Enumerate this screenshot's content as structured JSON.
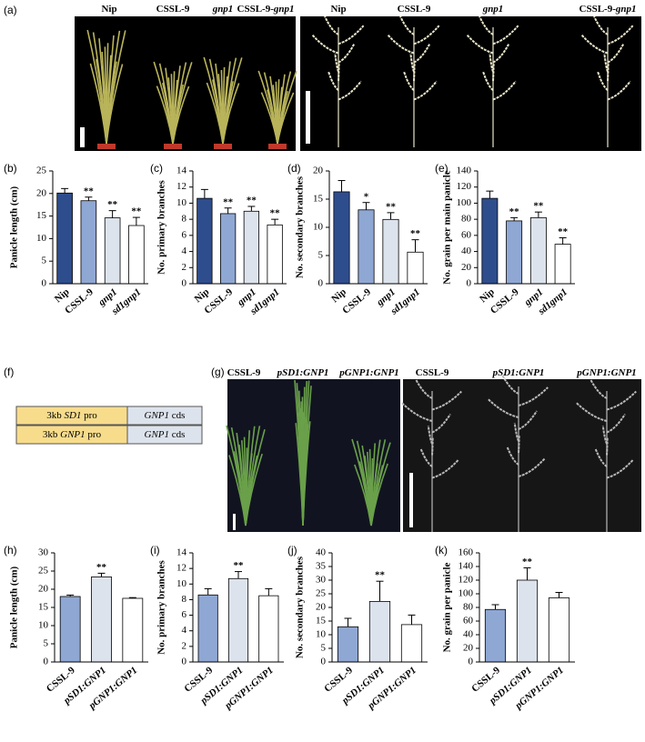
{
  "figure_labels": [
    "(a)",
    "(b)",
    "(c)",
    "(d)",
    "(e)",
    "(f)",
    "(g)",
    "(h)",
    "(i)",
    "(j)",
    "(k)"
  ],
  "photo_a_left": [
    [
      {
        "text": "Nip",
        "italic": false
      }
    ],
    [
      {
        "text": "CSSL-9",
        "italic": false
      }
    ],
    [
      {
        "text": "gnp1",
        "italic": true
      }
    ],
    [
      {
        "text": "CSSL-9-",
        "italic": false
      },
      {
        "text": "gnp1",
        "italic": true
      }
    ]
  ],
  "photo_a_right": [
    [
      {
        "text": "Nip",
        "italic": false
      }
    ],
    [
      {
        "text": "CSSL-9",
        "italic": false
      }
    ],
    [
      {
        "text": "gnp1",
        "italic": true
      }
    ],
    [
      {
        "text": "CSSL-9-",
        "italic": false
      },
      {
        "text": "gnp1",
        "italic": true
      }
    ]
  ],
  "photo_g_left": [
    [
      {
        "text": "CSSL-9",
        "italic": false
      }
    ],
    [
      {
        "text": "pSD1:GNP1",
        "italic": true
      }
    ],
    [
      {
        "text": "pGNP1:GNP1",
        "italic": true
      }
    ]
  ],
  "photo_g_right": [
    [
      {
        "text": "CSSL-9",
        "italic": false
      }
    ],
    [
      {
        "text": "pSD1:GNP1",
        "italic": true
      }
    ],
    [
      {
        "text": "pGNP1:GNP1",
        "italic": true
      }
    ]
  ],
  "constructs": [
    {
      "promoter": [
        {
          "text": "3kb ",
          "italic": false
        },
        {
          "text": "SD1",
          "italic": true
        },
        {
          "text": " pro",
          "italic": false
        }
      ],
      "cds": [
        {
          "text": "GNP1",
          "italic": true
        },
        {
          "text": " cds",
          "italic": false
        }
      ]
    },
    {
      "promoter": [
        {
          "text": "3kb ",
          "italic": false
        },
        {
          "text": "GNP1",
          "italic": true
        },
        {
          "text": " pro",
          "italic": false
        }
      ],
      "cds": [
        {
          "text": "GNP1",
          "italic": true
        },
        {
          "text": " cds",
          "italic": false
        }
      ]
    }
  ],
  "chart_data": [
    {
      "type": "bar",
      "y_label": "Panicle length (cm)",
      "categories": [
        "Nip",
        "CSSL-9",
        "gnp1",
        "sd1gnp1"
      ],
      "category_italic": [
        false,
        false,
        true,
        true
      ],
      "values": [
        20.1,
        18.4,
        14.6,
        12.9
      ],
      "errors": [
        1.0,
        0.8,
        1.6,
        1.8
      ],
      "annotations": [
        null,
        "**",
        "**",
        "**"
      ],
      "colors": [
        "#2e4d8c",
        "#8fa7d3",
        "#dde3ec",
        "#ffffff"
      ],
      "ylim": [
        0,
        25
      ],
      "yticks": [
        0,
        5,
        10,
        15,
        20,
        25
      ]
    },
    {
      "type": "bar",
      "y_label": "No. primary branches",
      "categories": [
        "Nip",
        "CSSL-9",
        "gnp1",
        "sd1gnp1"
      ],
      "category_italic": [
        false,
        false,
        true,
        true
      ],
      "values": [
        10.6,
        8.7,
        9.0,
        7.3
      ],
      "errors": [
        1.1,
        0.7,
        0.6,
        0.7
      ],
      "annotations": [
        null,
        "**",
        "**",
        "**"
      ],
      "colors": [
        "#2e4d8c",
        "#8fa7d3",
        "#dde3ec",
        "#ffffff"
      ],
      "ylim": [
        0,
        14
      ],
      "yticks": [
        0,
        2,
        4,
        6,
        8,
        10,
        12,
        14
      ]
    },
    {
      "type": "bar",
      "y_label": "No. secondary branches",
      "categories": [
        "Nip",
        "CSSL-9",
        "gnp1",
        "sd1gnp1"
      ],
      "category_italic": [
        false,
        false,
        true,
        true
      ],
      "values": [
        16.3,
        13.1,
        11.4,
        5.6
      ],
      "errors": [
        2.0,
        1.3,
        1.2,
        2.2
      ],
      "annotations": [
        null,
        "*",
        "**",
        "**"
      ],
      "colors": [
        "#2e4d8c",
        "#8fa7d3",
        "#dde3ec",
        "#ffffff"
      ],
      "ylim": [
        0,
        20
      ],
      "yticks": [
        0,
        5,
        10,
        15,
        20
      ]
    },
    {
      "type": "bar",
      "y_label": "No. grain per main panicle",
      "categories": [
        "Nip",
        "CSSL-9",
        "gnp1",
        "sd1gnp1"
      ],
      "category_italic": [
        false,
        false,
        true,
        true
      ],
      "values": [
        106,
        78,
        82,
        49
      ],
      "errors": [
        9,
        4,
        7,
        8
      ],
      "annotations": [
        null,
        "**",
        "**",
        "**"
      ],
      "colors": [
        "#2e4d8c",
        "#8fa7d3",
        "#dde3ec",
        "#ffffff"
      ],
      "ylim": [
        0,
        140
      ],
      "yticks": [
        0,
        20,
        40,
        60,
        80,
        100,
        120,
        140
      ]
    },
    {
      "type": "bar",
      "y_label": "Panicle length (cm)",
      "categories": [
        "CSSL-9",
        "pSD1:GNP1",
        "pGNP1:GNP1"
      ],
      "category_italic": [
        false,
        true,
        true
      ],
      "values": [
        18.0,
        23.4,
        17.5
      ],
      "errors": [
        0.4,
        1.0,
        0.2
      ],
      "annotations": [
        null,
        "**",
        null
      ],
      "colors": [
        "#8fa7d3",
        "#dde3ec",
        "#ffffff"
      ],
      "ylim": [
        0,
        30
      ],
      "yticks": [
        0,
        5,
        10,
        15,
        20,
        25,
        30
      ]
    },
    {
      "type": "bar",
      "y_label": "No. primary branches",
      "categories": [
        "CSSL-9",
        "pSD1:GNP1",
        "pGNP1:GNP1"
      ],
      "category_italic": [
        false,
        true,
        true
      ],
      "values": [
        8.6,
        10.7,
        8.5
      ],
      "errors": [
        0.8,
        0.9,
        0.9
      ],
      "annotations": [
        null,
        "**",
        null
      ],
      "colors": [
        "#8fa7d3",
        "#dde3ec",
        "#ffffff"
      ],
      "ylim": [
        0,
        14
      ],
      "yticks": [
        0,
        2,
        4,
        6,
        8,
        10,
        12,
        14
      ]
    },
    {
      "type": "bar",
      "y_label": "No. secondary branches",
      "categories": [
        "CSSL-9",
        "pSD1:GNP1",
        "pGNP1:GNP1"
      ],
      "category_italic": [
        false,
        true,
        true
      ],
      "values": [
        12.9,
        22.2,
        13.7
      ],
      "errors": [
        3.1,
        7.4,
        3.5
      ],
      "annotations": [
        null,
        "**",
        null
      ],
      "colors": [
        "#8fa7d3",
        "#dde3ec",
        "#ffffff"
      ],
      "ylim": [
        0,
        40
      ],
      "yticks": [
        0,
        5,
        10,
        15,
        20,
        25,
        30,
        35,
        40
      ]
    },
    {
      "type": "bar",
      "y_label": "No. grain per panicle",
      "categories": [
        "CSSL-9",
        "pSD1:GNP1",
        "pGNP1:GNP1"
      ],
      "category_italic": [
        false,
        true,
        true
      ],
      "values": [
        77,
        120,
        94
      ],
      "errors": [
        7,
        18,
        8
      ],
      "annotations": [
        null,
        "**",
        null
      ],
      "colors": [
        "#8fa7d3",
        "#dde3ec",
        "#ffffff"
      ],
      "ylim": [
        0,
        160
      ],
      "yticks": [
        0,
        20,
        40,
        60,
        80,
        100,
        120,
        140,
        160
      ]
    }
  ]
}
